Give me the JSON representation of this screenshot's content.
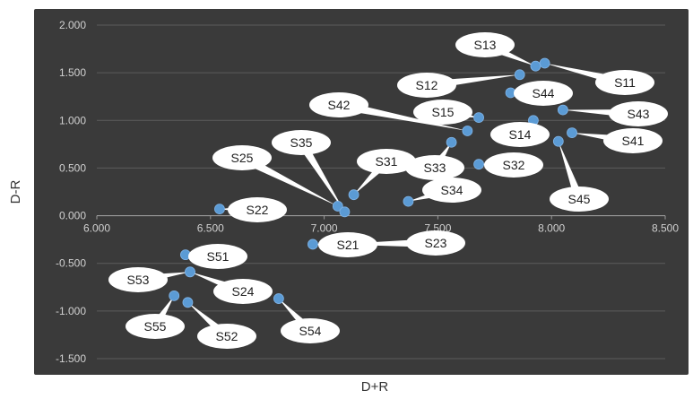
{
  "chart_data": {
    "type": "scatter",
    "title": "",
    "xlabel": "D+R",
    "ylabel": "D-R",
    "xlim": [
      6.0,
      8.5
    ],
    "ylim": [
      -1.5,
      2.0
    ],
    "x_ticks": [
      "6.000",
      "6.500",
      "7.000",
      "7.500",
      "8.000",
      "8.500"
    ],
    "y_ticks": [
      "-1.500",
      "-1.000",
      "-0.500",
      "0.000",
      "0.500",
      "1.000",
      "1.500",
      "2.000"
    ],
    "grid": true,
    "legend": "none",
    "colors": {
      "plot_background": "#3a3a3a",
      "gridline": "#5c5c5c",
      "axis_line": "#9a9a9a",
      "tick_label": "#d0d0d0",
      "marker": "#5b9bd5",
      "label_bubble": "#ffffff",
      "label_text": "#222222"
    },
    "points": [
      {
        "label": "S11",
        "x": 7.97,
        "y": 1.6
      },
      {
        "label": "S12",
        "x": 7.86,
        "y": 1.48
      },
      {
        "label": "S13",
        "x": 7.93,
        "y": 1.57
      },
      {
        "label": "S14",
        "x": 7.92,
        "y": 1.0
      },
      {
        "label": "S15",
        "x": 7.68,
        "y": 1.03
      },
      {
        "label": "S21",
        "x": 6.95,
        "y": -0.3
      },
      {
        "label": "S22",
        "x": 6.54,
        "y": 0.07
      },
      {
        "label": "S23",
        "x": 7.05,
        "y": -0.3
      },
      {
        "label": "S24",
        "x": 6.41,
        "y": -0.59
      },
      {
        "label": "S25",
        "x": 7.06,
        "y": 0.1
      },
      {
        "label": "S31",
        "x": 7.13,
        "y": 0.22
      },
      {
        "label": "S32",
        "x": 7.68,
        "y": 0.54
      },
      {
        "label": "S33",
        "x": 7.56,
        "y": 0.77
      },
      {
        "label": "S34",
        "x": 7.37,
        "y": 0.15
      },
      {
        "label": "S35",
        "x": 7.09,
        "y": 0.04
      },
      {
        "label": "S41",
        "x": 8.09,
        "y": 0.87
      },
      {
        "label": "S42",
        "x": 7.63,
        "y": 0.89
      },
      {
        "label": "S43",
        "x": 8.05,
        "y": 1.11
      },
      {
        "label": "S44",
        "x": 7.82,
        "y": 1.29
      },
      {
        "label": "S45",
        "x": 8.03,
        "y": 0.78
      },
      {
        "label": "S51",
        "x": 6.39,
        "y": -0.41
      },
      {
        "label": "S52",
        "x": 6.4,
        "y": -0.91
      },
      {
        "label": "S53",
        "x": 6.41,
        "y": -0.59
      },
      {
        "label": "S54",
        "x": 6.8,
        "y": -0.87
      },
      {
        "label": "S55",
        "x": 6.34,
        "y": -0.84
      }
    ]
  }
}
